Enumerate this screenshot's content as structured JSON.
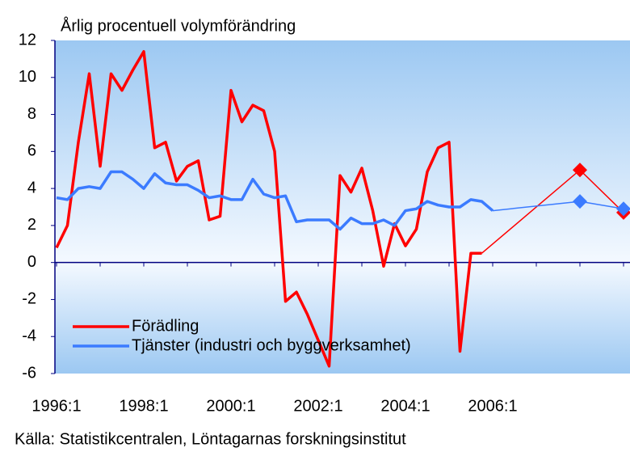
{
  "chart_data": {
    "type": "line",
    "title": "Årlig procentuell volymförändring",
    "source": "Källa: Statistikcentralen, Löntagarnas forskningsinstitut",
    "categories": [
      "1996:1",
      null,
      null,
      null,
      null,
      null,
      null,
      null,
      "1998:1",
      null,
      null,
      null,
      null,
      null,
      null,
      null,
      "2000:1",
      null,
      null,
      null,
      null,
      null,
      null,
      null,
      "2002:1",
      null,
      null,
      null,
      null,
      null,
      null,
      null,
      "2004:1",
      null,
      null,
      null,
      null,
      null,
      null,
      null,
      "2006:1",
      null,
      null,
      null,
      null,
      null,
      null,
      null,
      null,
      null,
      null,
      null,
      null,
      null
    ],
    "series": [
      {
        "name": "Förädling",
        "color": "#ff0000",
        "values": [
          0.8,
          2.0,
          6.5,
          10.2,
          5.2,
          10.2,
          9.3,
          10.4,
          11.4,
          6.2,
          6.5,
          4.4,
          5.2,
          5.5,
          2.3,
          2.5,
          9.3,
          7.6,
          8.5,
          8.2,
          6.0,
          -2.1,
          -1.6,
          -2.8,
          -4.2,
          -5.6,
          4.7,
          3.8,
          5.1,
          2.8,
          -0.2,
          2.1,
          0.9,
          1.8,
          4.9,
          6.2,
          6.5,
          -4.8,
          0.5,
          0.5,
          null,
          null,
          null,
          null,
          null,
          null,
          null,
          null,
          null,
          null,
          null,
          null,
          null,
          null
        ],
        "forecast_values": [
          null,
          null,
          null,
          null,
          null,
          null,
          null,
          null,
          null,
          null,
          null,
          null,
          null,
          null,
          null,
          null,
          null,
          null,
          null,
          null,
          null,
          null,
          null,
          null,
          null,
          null,
          null,
          null,
          null,
          null,
          null,
          null,
          null,
          null,
          null,
          null,
          null,
          null,
          null,
          null,
          null,
          null,
          null,
          null,
          null,
          null,
          null,
          null,
          5.0,
          null,
          null,
          null,
          2.7,
          null
        ]
      },
      {
        "name": "Tjänster (industri och byggverksamhet)",
        "color": "#3b7bff",
        "values": [
          3.5,
          3.4,
          4.0,
          4.1,
          4.0,
          4.9,
          4.9,
          4.5,
          4.0,
          4.8,
          4.3,
          4.2,
          4.2,
          3.9,
          3.5,
          3.6,
          3.4,
          3.4,
          4.5,
          3.7,
          3.5,
          3.6,
          2.2,
          2.3,
          2.3,
          2.3,
          1.8,
          2.4,
          2.1,
          2.1,
          2.3,
          2.0,
          2.8,
          2.9,
          3.3,
          3.1,
          3.0,
          3.0,
          3.4,
          3.3,
          2.8,
          null,
          null,
          null,
          null,
          null,
          null,
          null,
          null,
          null,
          null,
          null,
          null,
          null
        ],
        "forecast_values": [
          null,
          null,
          null,
          null,
          null,
          null,
          null,
          null,
          null,
          null,
          null,
          null,
          null,
          null,
          null,
          null,
          null,
          null,
          null,
          null,
          null,
          null,
          null,
          null,
          null,
          null,
          null,
          null,
          null,
          null,
          null,
          null,
          null,
          null,
          null,
          null,
          null,
          null,
          null,
          null,
          null,
          null,
          null,
          null,
          null,
          null,
          null,
          null,
          3.3,
          null,
          null,
          null,
          2.9,
          null
        ]
      }
    ],
    "ylim": [
      -6,
      12
    ],
    "yticks": [
      -6,
      -4,
      -2,
      0,
      2,
      4,
      6,
      8,
      10,
      12
    ],
    "legend": "lower left"
  }
}
